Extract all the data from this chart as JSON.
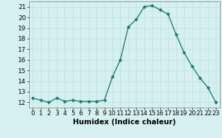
{
  "x": [
    0,
    1,
    2,
    3,
    4,
    5,
    6,
    7,
    8,
    9,
    10,
    11,
    12,
    13,
    14,
    15,
    16,
    17,
    18,
    19,
    20,
    21,
    22,
    23
  ],
  "y": [
    12.4,
    12.2,
    12.0,
    12.4,
    12.1,
    12.2,
    12.1,
    12.1,
    12.1,
    12.2,
    14.4,
    16.0,
    19.1,
    19.8,
    21.0,
    21.1,
    20.7,
    20.3,
    18.4,
    16.7,
    15.4,
    14.3,
    13.4,
    12.0
  ],
  "line_color": "#1a7a6e",
  "bg_color": "#d6f0f0",
  "grid_color": "#b8dede",
  "xlabel": "Humidex (Indice chaleur)",
  "ylim": [
    11.5,
    21.5
  ],
  "yticks": [
    12,
    13,
    14,
    15,
    16,
    17,
    18,
    19,
    20,
    21
  ],
  "xticks": [
    0,
    1,
    2,
    3,
    4,
    5,
    6,
    7,
    8,
    9,
    10,
    11,
    12,
    13,
    14,
    15,
    16,
    17,
    18,
    19,
    20,
    21,
    22,
    23
  ],
  "marker_size": 2.5,
  "line_width": 1.0,
  "xlabel_fontsize": 7.5,
  "tick_fontsize": 6.5
}
